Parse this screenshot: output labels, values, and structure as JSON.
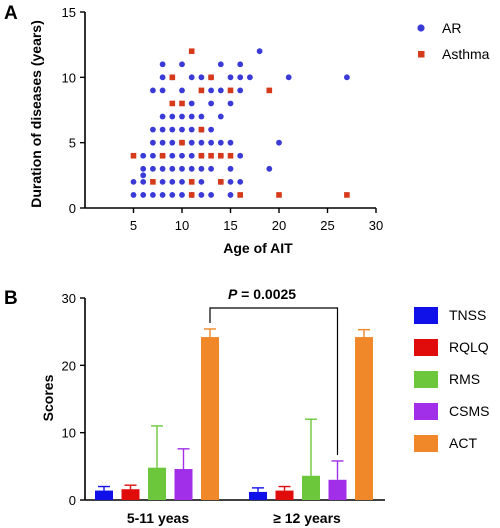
{
  "chart_data": [
    {
      "panel_label": "A",
      "type": "scatter",
      "xlabel": "Age of AIT",
      "ylabel": "Duration of diseases (years)",
      "xlim": [
        0,
        30
      ],
      "ylim": [
        0,
        15
      ],
      "xticks": [
        5,
        10,
        15,
        20,
        25,
        30
      ],
      "yticks": [
        0,
        5,
        10,
        15
      ],
      "legend_position": "right",
      "series": [
        {
          "name": "AR",
          "color": "#3a3ad6",
          "marker": "circle",
          "points": [
            [
              5,
              1
            ],
            [
              5,
              2
            ],
            [
              6,
              1
            ],
            [
              6,
              2
            ],
            [
              6,
              2.5
            ],
            [
              6,
              3
            ],
            [
              6,
              4
            ],
            [
              7,
              1
            ],
            [
              7,
              3
            ],
            [
              7,
              4
            ],
            [
              7,
              5
            ],
            [
              7,
              6
            ],
            [
              7,
              9
            ],
            [
              8,
              1
            ],
            [
              8,
              2
            ],
            [
              8,
              3
            ],
            [
              8,
              4
            ],
            [
              8,
              5
            ],
            [
              8,
              6
            ],
            [
              8,
              7
            ],
            [
              8,
              9
            ],
            [
              8,
              10
            ],
            [
              8,
              11
            ],
            [
              9,
              1
            ],
            [
              9,
              2
            ],
            [
              9,
              3
            ],
            [
              9,
              4
            ],
            [
              9,
              5
            ],
            [
              9,
              6
            ],
            [
              9,
              7
            ],
            [
              9,
              10
            ],
            [
              10,
              1
            ],
            [
              10,
              2
            ],
            [
              10,
              3
            ],
            [
              10,
              4
            ],
            [
              10,
              5
            ],
            [
              10,
              6
            ],
            [
              10,
              7
            ],
            [
              10,
              9
            ],
            [
              10,
              11
            ],
            [
              11,
              1
            ],
            [
              11,
              3
            ],
            [
              11,
              4
            ],
            [
              11,
              5
            ],
            [
              11,
              6
            ],
            [
              11,
              7
            ],
            [
              11,
              8
            ],
            [
              11,
              10
            ],
            [
              12,
              1
            ],
            [
              12,
              2
            ],
            [
              12,
              3
            ],
            [
              12,
              4
            ],
            [
              12,
              5
            ],
            [
              12,
              6
            ],
            [
              12,
              7
            ],
            [
              12,
              10
            ],
            [
              13,
              1
            ],
            [
              13,
              3
            ],
            [
              13,
              5
            ],
            [
              13,
              6
            ],
            [
              13,
              8
            ],
            [
              13,
              9
            ],
            [
              13,
              10
            ],
            [
              14,
              2
            ],
            [
              14,
              4
            ],
            [
              14,
              5
            ],
            [
              14,
              7
            ],
            [
              14,
              9
            ],
            [
              14,
              11
            ],
            [
              15,
              1
            ],
            [
              15,
              2
            ],
            [
              15,
              3
            ],
            [
              15,
              5
            ],
            [
              15,
              8
            ],
            [
              15,
              10
            ],
            [
              16,
              2
            ],
            [
              16,
              4
            ],
            [
              16,
              9
            ],
            [
              16,
              10
            ],
            [
              16,
              11
            ],
            [
              17,
              10
            ],
            [
              18,
              12
            ],
            [
              19,
              3
            ],
            [
              20,
              5
            ],
            [
              21,
              10
            ],
            [
              27,
              10
            ]
          ]
        },
        {
          "name": "Asthma",
          "color": "#d53a1a",
          "marker": "square",
          "points": [
            [
              5,
              4
            ],
            [
              7,
              2
            ],
            [
              8,
              4
            ],
            [
              9,
              8
            ],
            [
              9,
              10
            ],
            [
              10,
              5
            ],
            [
              10,
              8
            ],
            [
              11,
              1
            ],
            [
              11,
              12
            ],
            [
              11,
              2
            ],
            [
              12,
              4
            ],
            [
              12,
              6
            ],
            [
              12,
              9
            ],
            [
              13,
              4
            ],
            [
              13,
              10
            ],
            [
              14,
              4
            ],
            [
              14,
              2
            ],
            [
              15,
              4
            ],
            [
              15,
              9
            ],
            [
              16,
              1
            ],
            [
              19,
              9
            ],
            [
              20,
              1
            ],
            [
              27,
              1
            ]
          ]
        }
      ]
    },
    {
      "panel_label": "B",
      "type": "bar",
      "ylabel": "Scores",
      "ylim": [
        0,
        30
      ],
      "yticks": [
        0,
        10,
        20,
        30
      ],
      "categories": [
        "5-11 yeas",
        "≥ 12 years"
      ],
      "legend_position": "right",
      "series": [
        {
          "name": "TNSS",
          "color": "#1010e8",
          "values": [
            1.4,
            1.2
          ],
          "errors": [
            0.6,
            0.6
          ]
        },
        {
          "name": "RQLQ",
          "color": "#e00c0c",
          "values": [
            1.6,
            1.4
          ],
          "errors": [
            0.6,
            0.6
          ]
        },
        {
          "name": "RMS",
          "color": "#6cc83a",
          "values": [
            4.8,
            3.6
          ],
          "errors": [
            6.2,
            8.4
          ]
        },
        {
          "name": "CSMS",
          "color": "#a12ee8",
          "values": [
            4.6,
            3.0
          ],
          "errors": [
            3.0,
            2.8
          ]
        },
        {
          "name": "ACT",
          "color": "#f0882a",
          "values": [
            24.2,
            24.2
          ],
          "errors": [
            1.2,
            1.1
          ]
        }
      ],
      "annotation": {
        "p_symbol": "P",
        "p_rest": " = 0.0025",
        "bracket_between": [
          {
            "category": 0,
            "series": "ACT"
          },
          {
            "category": 1,
            "series": "CSMS"
          }
        ]
      }
    }
  ]
}
